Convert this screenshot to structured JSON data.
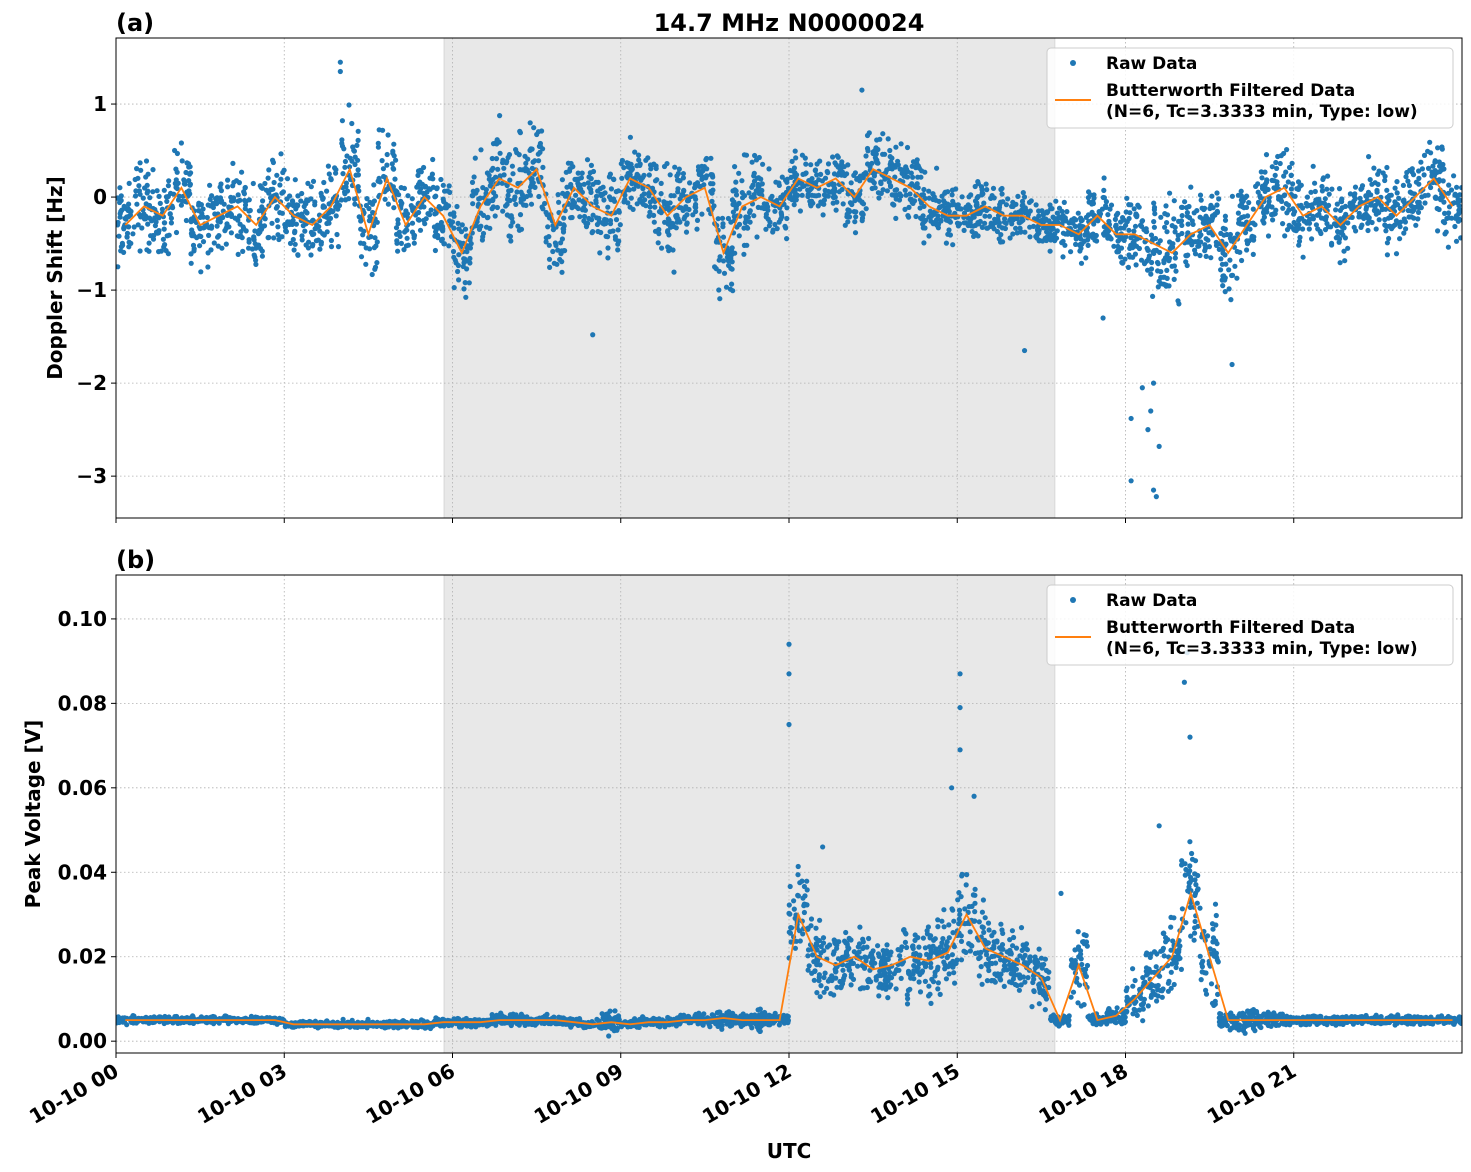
{
  "chart_data": [
    {
      "type": "scatter",
      "panel_label": "(a)",
      "title": "14.7 MHz N0000024",
      "ylabel": "Doppler Shift [Hz]",
      "xlabel": "",
      "xlim_hours": [
        0,
        24
      ],
      "ylim": [
        -3.45,
        1.71
      ],
      "yticks": [
        1,
        0,
        -1,
        -2,
        -3
      ],
      "ytick_labels": [
        "1",
        "0",
        "−1",
        "−2",
        "−3"
      ],
      "shaded_hours": [
        5.85,
        16.74
      ],
      "grid": true,
      "legend_placement": "top-right",
      "legend": [
        "Raw Data",
        "Butterworth Filtered Data",
        "(N=6, Tc=3.3333 min, Type: low)"
      ],
      "bin_hours": 0.3333,
      "filtered": [
        -0.3,
        -0.1,
        -0.2,
        0.1,
        -0.3,
        -0.2,
        -0.1,
        -0.3,
        0.0,
        -0.2,
        -0.3,
        -0.1,
        0.3,
        -0.4,
        0.2,
        -0.3,
        0.0,
        -0.2,
        -0.6,
        -0.1,
        0.2,
        0.1,
        0.3,
        -0.3,
        0.1,
        -0.1,
        -0.2,
        0.2,
        0.1,
        -0.2,
        0.0,
        0.1,
        -0.6,
        -0.1,
        0.0,
        -0.1,
        0.2,
        0.1,
        0.2,
        0.0,
        0.3,
        0.2,
        0.1,
        -0.1,
        -0.2,
        -0.2,
        -0.1,
        -0.2,
        -0.2,
        -0.3,
        -0.3,
        -0.4,
        -0.2,
        -0.4,
        -0.4,
        -0.5,
        -0.6,
        -0.4,
        -0.3,
        -0.6,
        -0.3,
        0.0,
        0.1,
        -0.2,
        -0.1,
        -0.3,
        -0.1,
        0.0,
        -0.2,
        0.0,
        0.2,
        -0.1
      ],
      "raw_spread": [
        0.6,
        0.7,
        0.6,
        0.6,
        0.6,
        0.6,
        0.6,
        0.7,
        0.6,
        0.6,
        0.6,
        0.6,
        0.8,
        0.7,
        0.7,
        0.6,
        0.6,
        0.6,
        0.7,
        0.7,
        0.8,
        0.8,
        0.7,
        0.8,
        0.6,
        0.7,
        0.7,
        0.6,
        0.6,
        0.7,
        0.6,
        0.6,
        0.7,
        0.7,
        0.6,
        0.6,
        0.4,
        0.4,
        0.5,
        0.5,
        0.6,
        0.6,
        0.5,
        0.5,
        0.5,
        0.4,
        0.4,
        0.4,
        0.4,
        0.4,
        0.4,
        0.4,
        0.5,
        0.5,
        0.6,
        0.7,
        0.8,
        0.6,
        0.6,
        0.7,
        0.7,
        0.6,
        0.6,
        0.6,
        0.5,
        0.5,
        0.5,
        0.5,
        0.5,
        0.5,
        0.6,
        0.6
      ],
      "raw_outliers": [
        [
          4.0,
          1.45
        ],
        [
          4.0,
          1.35
        ],
        [
          13.3,
          1.15
        ],
        [
          18.1,
          -3.05
        ],
        [
          18.55,
          -3.22
        ],
        [
          18.5,
          -3.15
        ],
        [
          18.4,
          -2.5
        ],
        [
          18.6,
          -2.68
        ],
        [
          18.45,
          -2.3
        ],
        [
          18.1,
          -2.38
        ],
        [
          18.3,
          -2.05
        ],
        [
          18.5,
          -2.0
        ],
        [
          16.2,
          -1.65
        ],
        [
          17.6,
          -1.3
        ],
        [
          19.9,
          -1.8
        ],
        [
          8.5,
          -1.48
        ]
      ]
    },
    {
      "type": "scatter",
      "panel_label": "(b)",
      "ylabel": "Peak Voltage [V]",
      "xlabel": "UTC",
      "xlim_hours": [
        0,
        24
      ],
      "ylim": [
        -0.0028,
        0.1104
      ],
      "yticks": [
        0.1,
        0.08,
        0.06,
        0.04,
        0.02,
        0.0
      ],
      "ytick_labels": [
        "0.10",
        "0.08",
        "0.06",
        "0.04",
        "0.02",
        "0.00"
      ],
      "xtick_labels": [
        "10-10 00",
        "10-10 03",
        "10-10 06",
        "10-10 09",
        "10-10 12",
        "10-10 15",
        "10-10 18",
        "10-10 21"
      ],
      "shaded_hours": [
        5.85,
        16.74
      ],
      "grid": true,
      "legend_placement": "top-right",
      "legend": [
        "Raw Data",
        "Butterworth Filtered Data",
        "(N=6, Tc=3.3333 min, Type: low)"
      ],
      "bin_hours": 0.3333,
      "filtered": [
        0.005,
        0.005,
        0.005,
        0.005,
        0.005,
        0.005,
        0.005,
        0.005,
        0.005,
        0.004,
        0.004,
        0.004,
        0.004,
        0.004,
        0.004,
        0.004,
        0.004,
        0.0045,
        0.0045,
        0.0045,
        0.005,
        0.005,
        0.005,
        0.005,
        0.0045,
        0.004,
        0.0045,
        0.004,
        0.0045,
        0.0045,
        0.005,
        0.005,
        0.0055,
        0.005,
        0.005,
        0.005,
        0.03,
        0.02,
        0.018,
        0.02,
        0.017,
        0.018,
        0.02,
        0.019,
        0.021,
        0.03,
        0.022,
        0.02,
        0.018,
        0.015,
        0.005,
        0.018,
        0.005,
        0.006,
        0.01,
        0.015,
        0.02,
        0.035,
        0.02,
        0.005,
        0.005,
        0.005,
        0.005,
        0.005,
        0.005,
        0.005,
        0.005,
        0.005,
        0.005,
        0.005,
        0.005,
        0.005
      ],
      "raw_spread": [
        0.0012,
        0.0012,
        0.0012,
        0.0012,
        0.0012,
        0.0012,
        0.0012,
        0.0012,
        0.0012,
        0.0012,
        0.0012,
        0.0012,
        0.0012,
        0.0012,
        0.0012,
        0.0012,
        0.0015,
        0.0015,
        0.0015,
        0.0015,
        0.002,
        0.002,
        0.0015,
        0.0015,
        0.0015,
        0.0015,
        0.004,
        0.0015,
        0.0015,
        0.0015,
        0.0015,
        0.002,
        0.003,
        0.002,
        0.004,
        0.002,
        0.015,
        0.012,
        0.01,
        0.012,
        0.011,
        0.012,
        0.012,
        0.013,
        0.013,
        0.015,
        0.013,
        0.012,
        0.012,
        0.011,
        0.002,
        0.012,
        0.002,
        0.003,
        0.008,
        0.01,
        0.015,
        0.02,
        0.015,
        0.003,
        0.004,
        0.003,
        0.002,
        0.0015,
        0.0015,
        0.0015,
        0.0015,
        0.0015,
        0.0015,
        0.0015,
        0.0015,
        0.0015
      ],
      "raw_outliers": [
        [
          12.0,
          0.094
        ],
        [
          12.0,
          0.087
        ],
        [
          12.0,
          0.075
        ],
        [
          15.05,
          0.087
        ],
        [
          15.05,
          0.079
        ],
        [
          15.05,
          0.069
        ],
        [
          14.9,
          0.06
        ],
        [
          15.3,
          0.058
        ],
        [
          19.1,
          0.092
        ],
        [
          19.05,
          0.085
        ],
        [
          19.15,
          0.072
        ],
        [
          18.6,
          0.051
        ],
        [
          12.6,
          0.046
        ],
        [
          16.85,
          0.035
        ]
      ]
    }
  ],
  "colors": {
    "raw": "#1f77b4",
    "filtered": "#ff7f0e",
    "shade": "#e8e8e8"
  }
}
